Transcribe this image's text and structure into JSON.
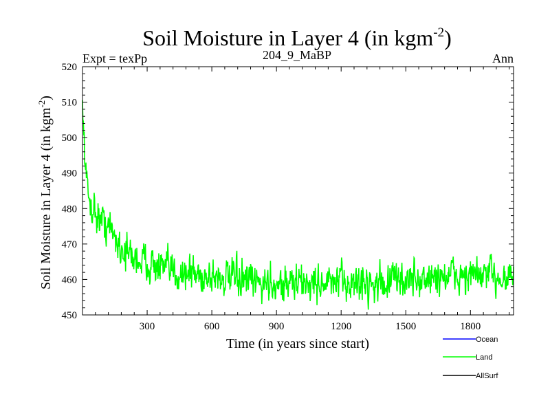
{
  "chart_data": {
    "type": "line",
    "title": "Soil Moisture in Layer 4 (in kgm",
    "title_superscript": "-2",
    "title_close": ")",
    "header_left": "Expt = texPp",
    "header_center": "204_9_MaBP",
    "header_right": "Ann",
    "xlabel": "Time (in years since start)",
    "ylabel": "Soil Moisture in Layer 4 (in kgm",
    "ylabel_superscript": "-2",
    "ylabel_close": ")",
    "xlim": [
      0,
      2000
    ],
    "ylim": [
      450,
      520
    ],
    "xticks": [
      300,
      600,
      900,
      1200,
      1500,
      1800
    ],
    "xtick_labels": [
      "300",
      "600",
      "900",
      "1200",
      "1500",
      "1800"
    ],
    "yticks": [
      450,
      460,
      470,
      480,
      490,
      500,
      510,
      520
    ],
    "ytick_labels": [
      "450",
      "460",
      "470",
      "480",
      "490",
      "500",
      "510",
      "520"
    ],
    "series": [
      {
        "name": "Ocean",
        "color": "#0000ff",
        "values": []
      },
      {
        "name": "Land",
        "color": "#00ff00",
        "x": [
          0,
          8,
          16,
          24,
          40,
          60,
          80,
          100,
          120,
          140,
          160,
          180,
          200,
          220,
          240,
          260,
          280,
          300,
          330,
          360,
          390,
          420,
          450,
          480,
          510,
          540,
          570,
          600,
          630,
          660,
          690,
          720,
          750,
          780,
          810,
          840,
          870,
          900,
          930,
          960,
          990,
          1020,
          1050,
          1080,
          1110,
          1140,
          1170,
          1200,
          1230,
          1260,
          1290,
          1320,
          1350,
          1380,
          1410,
          1440,
          1470,
          1500,
          1530,
          1560,
          1590,
          1620,
          1650,
          1680,
          1710,
          1740,
          1770,
          1800,
          1830,
          1860,
          1890,
          1920,
          1950,
          1980,
          2000
        ],
        "values": [
          507,
          499,
          490,
          484,
          481,
          479,
          477,
          476,
          475,
          473,
          471,
          469,
          468,
          467,
          466,
          466,
          465,
          465,
          464,
          463,
          463,
          462,
          462,
          462,
          462,
          461,
          461,
          461,
          461,
          460,
          460,
          460,
          460,
          459,
          459,
          459,
          459,
          459,
          459,
          459,
          459,
          459,
          459,
          459,
          459,
          459,
          459,
          459,
          459,
          459,
          459,
          459,
          459,
          459,
          459,
          460,
          460,
          460,
          460,
          460,
          460,
          460,
          461,
          461,
          461,
          461,
          461,
          461,
          461,
          461,
          461,
          461,
          461,
          461,
          461
        ]
      },
      {
        "name": "AllSurf",
        "color": "#000000",
        "values": []
      }
    ],
    "legend_position": "bottom-right",
    "grid": false
  }
}
